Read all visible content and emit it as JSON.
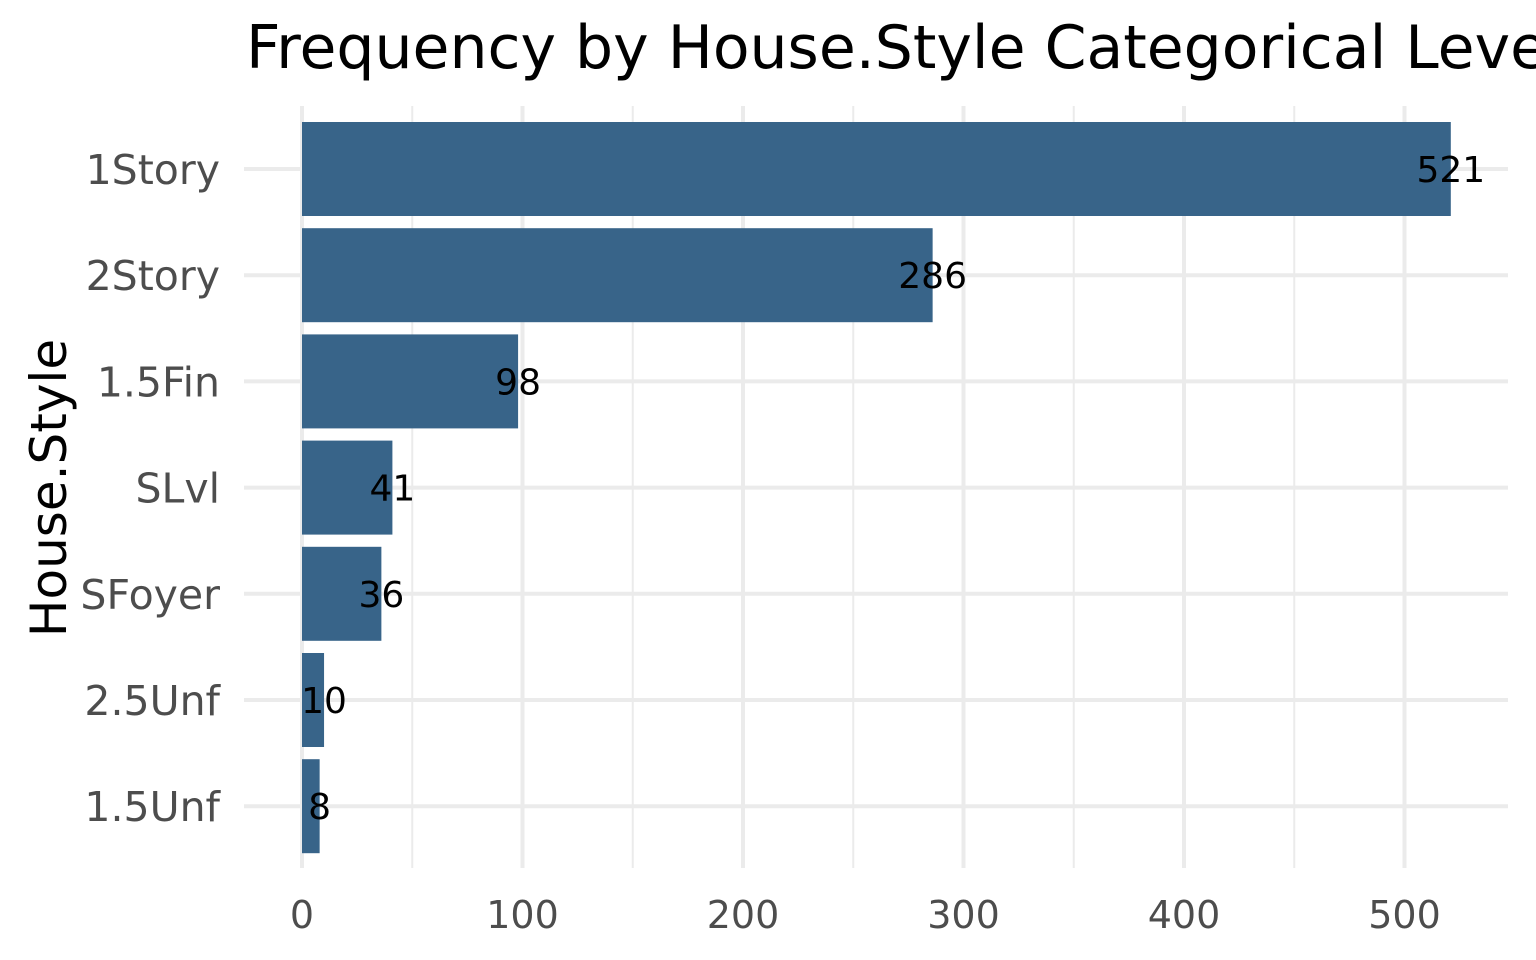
{
  "chart_data": {
    "type": "bar",
    "orientation": "horizontal",
    "title": "Frequency by House.Style Categorical Levels",
    "xlabel": "",
    "ylabel": "House.Style",
    "categories": [
      "1Story",
      "2Story",
      "1.5Fin",
      "SLvl",
      "SFoyer",
      "2.5Unf",
      "1.5Unf"
    ],
    "values": [
      521,
      286,
      98,
      41,
      36,
      10,
      8
    ],
    "data_labels": [
      "521",
      "286",
      "98",
      "41",
      "36",
      "10",
      "8"
    ],
    "x_ticks": [
      0,
      100,
      200,
      300,
      400,
      500
    ],
    "x_tick_labels": [
      "0",
      "100",
      "200",
      "300",
      "400",
      "500"
    ],
    "xlim": [
      0,
      547
    ],
    "grid": true,
    "legend": "none",
    "colors": {
      "bar": "#386489",
      "grid": "#ebebeb",
      "tick_text": "#4d4d4d",
      "text": "#000000",
      "background": "#ffffff"
    }
  }
}
